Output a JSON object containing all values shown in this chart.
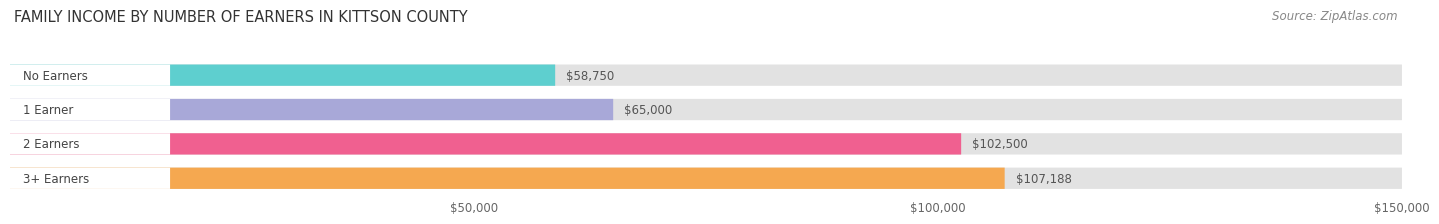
{
  "title": "Family Income by Number of Earners in Kittson County",
  "source": "Source: ZipAtlas.com",
  "categories": [
    "No Earners",
    "1 Earner",
    "2 Earners",
    "3+ Earners"
  ],
  "values": [
    58750,
    65000,
    102500,
    107188
  ],
  "bar_colors": [
    "#5ecfcf",
    "#a8a8d8",
    "#f06090",
    "#f5a850"
  ],
  "label_values": [
    "$58,750",
    "$65,000",
    "$102,500",
    "$107,188"
  ],
  "xlim": [
    0,
    150000
  ],
  "xticks": [
    50000,
    100000,
    150000
  ],
  "xtick_labels": [
    "$50,000",
    "$100,000",
    "$150,000"
  ],
  "bg_color": "#f7f7f7",
  "bar_bg_color": "#e2e2e2",
  "title_fontsize": 10.5,
  "source_fontsize": 8.5,
  "bar_height": 0.62,
  "figsize": [
    14.06,
    2.33
  ]
}
